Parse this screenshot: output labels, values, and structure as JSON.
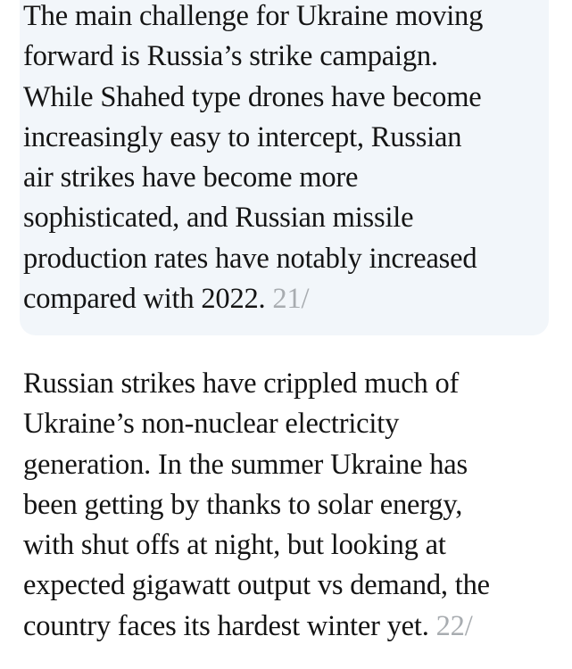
{
  "posts": [
    {
      "highlighted": true,
      "background": "#f2f6fa",
      "lines": [
        "The main challenge for Ukraine moving",
        "forward is Russia’s strike campaign.",
        "While Shahed type drones have become",
        "increasingly easy to intercept, Russian",
        "air strikes have become more",
        "sophisticated, and Russian missile",
        "production rates have notably increased",
        "compared with 2022."
      ],
      "number": "21/"
    },
    {
      "highlighted": false,
      "lines": [
        "Russian strikes have crippled much of",
        "Ukraine’s non-nuclear electricity",
        "generation. In the summer Ukraine has",
        "been getting by thanks to solar energy,",
        "with shut offs at night, but looking at",
        "expected gigawatt output vs demand, the",
        "country faces its hardest winter yet."
      ],
      "number": "22/"
    }
  ],
  "colors": {
    "text": "#141414",
    "number": "#a8acb0"
  }
}
